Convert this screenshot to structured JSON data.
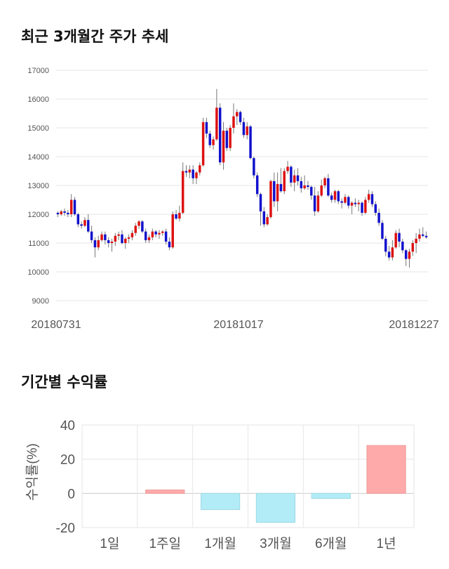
{
  "sections": {
    "price_title": "최근 3개월간 주가 추세",
    "returns_title": "기간별 수익률"
  },
  "chart_data": [
    {
      "type": "candlestick",
      "title": "",
      "xlabel": "",
      "ylabel": "",
      "ylim": [
        9000,
        17000
      ],
      "yticks": [
        9000,
        10000,
        11000,
        12000,
        13000,
        14000,
        15000,
        16000,
        17000
      ],
      "xtick_labels": [
        "20180731",
        "20181017",
        "20181227"
      ],
      "grid": true,
      "colors": {
        "up": "#dd1111",
        "down": "#1111cc",
        "wick": "#777777",
        "grid": "#e6e6e6"
      },
      "candles": [
        [
          12050,
          12100,
          11900,
          12000
        ],
        [
          12000,
          12150,
          11950,
          12100
        ],
        [
          12100,
          12200,
          11950,
          12050
        ],
        [
          12050,
          12150,
          11900,
          12000
        ],
        [
          12000,
          12700,
          11900,
          12500
        ],
        [
          12500,
          12600,
          11950,
          12000
        ],
        [
          12000,
          12050,
          11550,
          11650
        ],
        [
          11650,
          11750,
          11500,
          11600
        ],
        [
          11600,
          11900,
          11550,
          11800
        ],
        [
          11800,
          12000,
          11350,
          11400
        ],
        [
          11400,
          11600,
          11000,
          11100
        ],
        [
          11100,
          11200,
          10500,
          10850
        ],
        [
          10850,
          11250,
          10750,
          11100
        ],
        [
          11100,
          11400,
          11050,
          11300
        ],
        [
          11300,
          11400,
          10950,
          11100
        ],
        [
          11100,
          11200,
          10850,
          11000
        ],
        [
          11000,
          11150,
          10700,
          11050
        ],
        [
          11050,
          11350,
          10900,
          11250
        ],
        [
          11250,
          11400,
          11100,
          11300
        ],
        [
          11300,
          11450,
          10950,
          11000
        ],
        [
          11000,
          11200,
          10800,
          11150
        ],
        [
          11150,
          11300,
          11000,
          11200
        ],
        [
          11200,
          11450,
          11100,
          11350
        ],
        [
          11350,
          11700,
          11250,
          11600
        ],
        [
          11600,
          11800,
          11500,
          11750
        ],
        [
          11750,
          11800,
          11350,
          11400
        ],
        [
          11400,
          11500,
          11000,
          11100
        ],
        [
          11100,
          11300,
          11000,
          11200
        ],
        [
          11200,
          11500,
          11100,
          11400
        ],
        [
          11400,
          11450,
          11200,
          11300
        ],
        [
          11300,
          11450,
          11150,
          11350
        ],
        [
          11350,
          11450,
          11250,
          11400
        ],
        [
          11400,
          11500,
          10950,
          11050
        ],
        [
          11050,
          11200,
          10750,
          10850
        ],
        [
          10850,
          12100,
          10800,
          12000
        ],
        [
          12000,
          12150,
          11800,
          11850
        ],
        [
          11850,
          12300,
          11750,
          12050
        ],
        [
          12050,
          13800,
          12000,
          13500
        ],
        [
          13500,
          13700,
          13300,
          13450
        ],
        [
          13450,
          13700,
          13250,
          13550
        ],
        [
          13550,
          13700,
          13050,
          13250
        ],
        [
          13250,
          13500,
          13050,
          13450
        ],
        [
          13450,
          13800,
          13350,
          13700
        ],
        [
          13700,
          15350,
          13650,
          15200
        ],
        [
          15200,
          15350,
          14650,
          14800
        ],
        [
          14800,
          14900,
          14300,
          14400
        ],
        [
          14400,
          14700,
          14250,
          14600
        ],
        [
          14600,
          16350,
          14550,
          15700
        ],
        [
          15700,
          15850,
          13700,
          13800
        ],
        [
          13800,
          15200,
          13550,
          14900
        ],
        [
          14900,
          15000,
          14200,
          14300
        ],
        [
          14300,
          15100,
          14200,
          15000
        ],
        [
          15000,
          15850,
          14800,
          15400
        ],
        [
          15400,
          15650,
          15100,
          15550
        ],
        [
          15550,
          15600,
          15100,
          15200
        ],
        [
          15200,
          15350,
          14650,
          14750
        ],
        [
          14750,
          15200,
          14600,
          15050
        ],
        [
          15050,
          15100,
          13900,
          13950
        ],
        [
          13950,
          14000,
          13250,
          13350
        ],
        [
          13350,
          13450,
          12600,
          12700
        ],
        [
          12700,
          12750,
          11600,
          12100
        ],
        [
          12100,
          12250,
          11550,
          11650
        ],
        [
          11650,
          12000,
          11600,
          11900
        ],
        [
          11900,
          13200,
          11850,
          13150
        ],
        [
          13150,
          13450,
          12250,
          12450
        ],
        [
          12450,
          13450,
          12100,
          13050
        ],
        [
          13050,
          13600,
          12750,
          12800
        ],
        [
          12800,
          13600,
          12700,
          13500
        ],
        [
          13500,
          13850,
          13400,
          13650
        ],
        [
          13650,
          13700,
          12950,
          13100
        ],
        [
          13100,
          13550,
          12800,
          13350
        ],
        [
          13350,
          13600,
          13000,
          13150
        ],
        [
          13150,
          13300,
          12750,
          12900
        ],
        [
          12900,
          13350,
          12850,
          13000
        ],
        [
          13000,
          13150,
          12850,
          12950
        ],
        [
          12950,
          13000,
          12500,
          12650
        ],
        [
          12650,
          12950,
          11950,
          12100
        ],
        [
          12100,
          12800,
          12050,
          12650
        ],
        [
          12650,
          13200,
          12600,
          13000
        ],
        [
          13000,
          13300,
          12900,
          13250
        ],
        [
          13250,
          13400,
          12600,
          12650
        ],
        [
          12650,
          12750,
          12400,
          12500
        ],
        [
          12500,
          12850,
          12400,
          12800
        ],
        [
          12800,
          12850,
          12350,
          12450
        ],
        [
          12450,
          12550,
          12200,
          12400
        ],
        [
          12400,
          12700,
          12350,
          12600
        ],
        [
          12600,
          12650,
          12200,
          12300
        ],
        [
          12300,
          12450,
          12000,
          12400
        ],
        [
          12400,
          12550,
          12250,
          12350
        ],
        [
          12350,
          12500,
          12100,
          12400
        ],
        [
          12400,
          12450,
          11950,
          12050
        ],
        [
          12050,
          12600,
          12000,
          12500
        ],
        [
          12500,
          12850,
          12400,
          12700
        ],
        [
          12700,
          12800,
          12250,
          12350
        ],
        [
          12350,
          12450,
          11950,
          12050
        ],
        [
          12050,
          12200,
          11600,
          11700
        ],
        [
          11700,
          11800,
          11100,
          11150
        ],
        [
          11150,
          11250,
          10550,
          10700
        ],
        [
          10700,
          10900,
          10400,
          10500
        ],
        [
          10500,
          11100,
          10400,
          10850
        ],
        [
          10850,
          11450,
          10800,
          11350
        ],
        [
          11350,
          11500,
          10850,
          11050
        ],
        [
          11050,
          11150,
          10650,
          10750
        ],
        [
          10750,
          10800,
          10200,
          10450
        ],
        [
          10450,
          10800,
          10150,
          10700
        ],
        [
          10700,
          11100,
          10550,
          11000
        ],
        [
          11000,
          11350,
          10650,
          11150
        ],
        [
          11150,
          11500,
          11050,
          11300
        ],
        [
          11300,
          11550,
          11200,
          11250
        ],
        [
          11250,
          11400,
          11150,
          11200
        ]
      ]
    },
    {
      "type": "bar",
      "title": "",
      "xlabel": "",
      "ylabel": "수익률(%)",
      "ylim": [
        -20,
        40
      ],
      "yticks": [
        -20,
        0,
        20,
        40
      ],
      "grid": true,
      "categories": [
        "1일",
        "1주일",
        "1개월",
        "3개월",
        "6개월",
        "1년"
      ],
      "values": [
        0,
        2,
        -9.5,
        -17,
        -3,
        28
      ],
      "colors": {
        "positive": "#ffaaaa",
        "negative": "#b2ecf6",
        "grid": "#e6e6e6"
      }
    }
  ]
}
